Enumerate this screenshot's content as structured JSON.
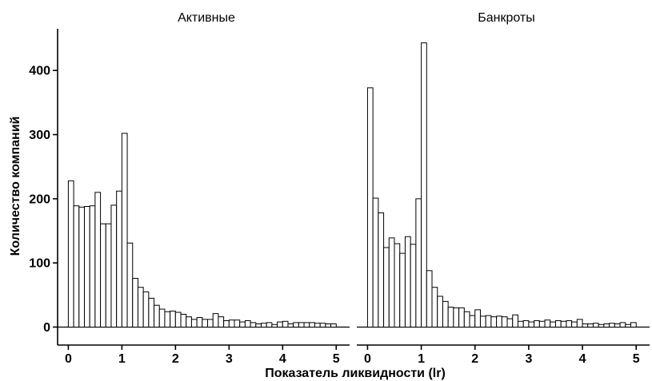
{
  "chart_data": {
    "type": "bar",
    "subtype": "histogram",
    "xlabel": "Показатель ликвидности (lr)",
    "ylabel": "Количество компаний",
    "ylim": [
      -28,
      465
    ],
    "xlim": [
      -0.2,
      5.25
    ],
    "xticks": [
      0,
      1,
      2,
      3,
      4,
      5
    ],
    "yticks": [
      0,
      100,
      200,
      300,
      400
    ],
    "bin_width": 0.1,
    "bin_starts": [
      0.0,
      0.1,
      0.2,
      0.3,
      0.4,
      0.5,
      0.6,
      0.7,
      0.8,
      0.9,
      1.0,
      1.1,
      1.2,
      1.3,
      1.4,
      1.5,
      1.6,
      1.7,
      1.8,
      1.9,
      2.0,
      2.1,
      2.2,
      2.3,
      2.4,
      2.5,
      2.6,
      2.7,
      2.8,
      2.9,
      3.0,
      3.1,
      3.2,
      3.3,
      3.4,
      3.5,
      3.6,
      3.7,
      3.8,
      3.9,
      4.0,
      4.1,
      4.2,
      4.3,
      4.4,
      4.5,
      4.6,
      4.7,
      4.8,
      4.9
    ],
    "bar_fill": "#ffffff",
    "bar_stroke": "#000000",
    "grid": false,
    "panels": [
      {
        "title": "Активные",
        "values": [
          228,
          189,
          187,
          188,
          189,
          210,
          161,
          161,
          190,
          212,
          302,
          131,
          76,
          62,
          55,
          45,
          34,
          28,
          24,
          25,
          23,
          20,
          16,
          12,
          15,
          12,
          12,
          21,
          16,
          10,
          11,
          11,
          8,
          10,
          7,
          5,
          6,
          7,
          4,
          8,
          9,
          5,
          7,
          7,
          7,
          7,
          6,
          6,
          5,
          5
        ]
      },
      {
        "title": "Банкроты",
        "values": [
          373,
          201,
          178,
          124,
          139,
          130,
          115,
          141,
          129,
          200,
          443,
          88,
          62,
          48,
          40,
          31,
          30,
          30,
          24,
          18,
          27,
          17,
          18,
          16,
          17,
          16,
          13,
          19,
          9,
          10,
          8,
          10,
          9,
          11,
          8,
          10,
          9,
          10,
          8,
          12,
          5,
          5,
          6,
          4,
          5,
          6,
          5,
          7,
          4,
          7
        ]
      }
    ]
  }
}
